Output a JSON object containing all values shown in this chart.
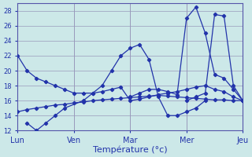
{
  "xlabel": "Température (°c)",
  "background_color": "#cce8e8",
  "grid_color": "#9999bb",
  "line_color": "#2233aa",
  "xlim": [
    0,
    24
  ],
  "ylim": [
    12,
    29
  ],
  "yticks": [
    12,
    14,
    16,
    18,
    20,
    22,
    24,
    26,
    28
  ],
  "day_tick_positions": [
    0,
    6,
    12,
    18,
    24
  ],
  "day_labels": [
    "Lun",
    "Ven",
    "Mar",
    "Mer",
    "Jeu"
  ],
  "series": [
    {
      "x": [
        0,
        1,
        2,
        3,
        4,
        5,
        6,
        7,
        8,
        9,
        10,
        11,
        12,
        13,
        14,
        15,
        16,
        17,
        18,
        19,
        20,
        21,
        22,
        23,
        24
      ],
      "y": [
        22,
        20,
        19,
        18.5,
        18,
        17.5,
        17,
        17,
        17,
        17.2,
        17.5,
        17.8,
        16,
        16.2,
        16.5,
        16.8,
        17,
        17.2,
        17.5,
        17.8,
        18,
        17.5,
        17.2,
        16.5,
        16
      ]
    },
    {
      "x": [
        0,
        1,
        2,
        3,
        4,
        5,
        6,
        7,
        8,
        9,
        10,
        11,
        12,
        13,
        14,
        15,
        16,
        17,
        18,
        19,
        20,
        21,
        22,
        23,
        24
      ],
      "y": [
        14.5,
        14.8,
        15.0,
        15.2,
        15.4,
        15.5,
        15.7,
        15.8,
        16.0,
        16.1,
        16.2,
        16.3,
        16.4,
        16.5,
        16.6,
        16.7,
        16.6,
        16.5,
        16.4,
        16.3,
        16.2,
        16.1,
        16.1,
        16.0,
        16.0
      ]
    },
    {
      "x": [
        1,
        2,
        3,
        4,
        5,
        7,
        8,
        9,
        10,
        11,
        12,
        13,
        14,
        15,
        16,
        17,
        18,
        19,
        20
      ],
      "y": [
        13,
        12,
        13,
        14,
        15,
        16,
        17,
        18,
        20,
        22,
        23,
        23.5,
        21.5,
        16.5,
        14,
        14,
        14.5,
        15,
        16
      ]
    },
    {
      "x": [
        12,
        13,
        14,
        15,
        16,
        17,
        18,
        19,
        20,
        21,
        22,
        23,
        24
      ],
      "y": [
        16.5,
        17,
        17.5,
        17.5,
        17.2,
        16.8,
        27,
        28.5,
        25,
        19.5,
        19,
        17.5,
        16
      ]
    },
    {
      "x": [
        18,
        19,
        20,
        21,
        22,
        23,
        24
      ],
      "y": [
        16,
        16.5,
        17,
        27.5,
        27.3,
        18,
        16
      ]
    }
  ]
}
